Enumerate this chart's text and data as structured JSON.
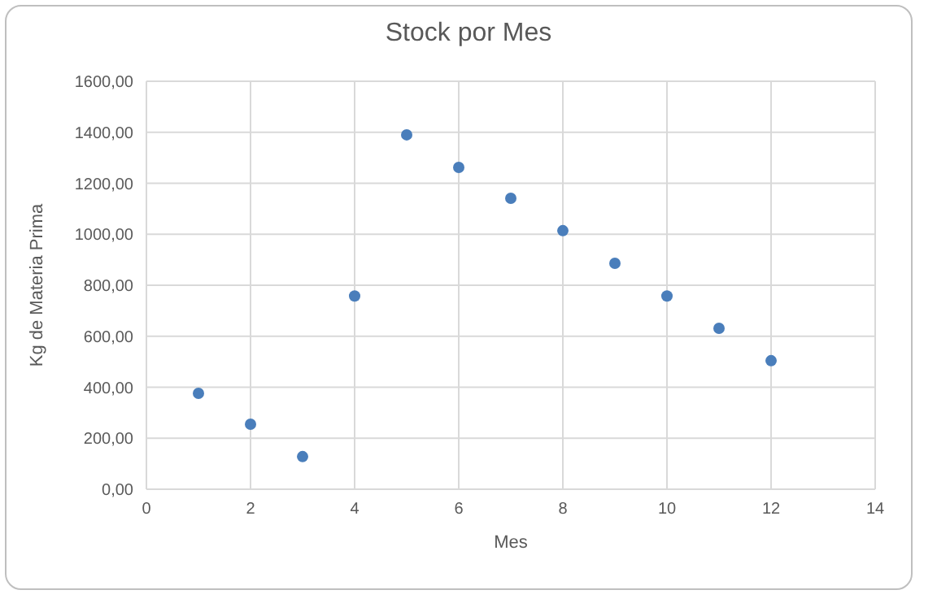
{
  "chart_data": {
    "type": "scatter",
    "title": "Stock por Mes",
    "xlabel": "Mes",
    "ylabel": "Kg de Materia Prima",
    "x": [
      1,
      2,
      3,
      4,
      5,
      6,
      7,
      8,
      9,
      10,
      11,
      12
    ],
    "series": [
      {
        "color": "#4a7ebb",
        "values": [
          376,
          255,
          128,
          758,
          1390,
          1262,
          1141,
          1014,
          886,
          758,
          631,
          504
        ]
      }
    ],
    "xlim": [
      0,
      14
    ],
    "xticks": [
      0,
      2,
      4,
      6,
      8,
      10,
      12,
      14
    ],
    "ylim": [
      0,
      1600
    ],
    "yticks": [
      {
        "value": 0,
        "label": "0,00"
      },
      {
        "value": 200,
        "label": "200,00"
      },
      {
        "value": 400,
        "label": "400,00"
      },
      {
        "value": 600,
        "label": "600,00"
      },
      {
        "value": 800,
        "label": "800,00"
      },
      {
        "value": 1000,
        "label": "1000,00"
      },
      {
        "value": 1200,
        "label": "1200,00"
      },
      {
        "value": 1400,
        "label": "1400,00"
      },
      {
        "value": 1600,
        "label": "1600,00"
      }
    ],
    "grid": true,
    "marker": "circle",
    "legend": false
  }
}
